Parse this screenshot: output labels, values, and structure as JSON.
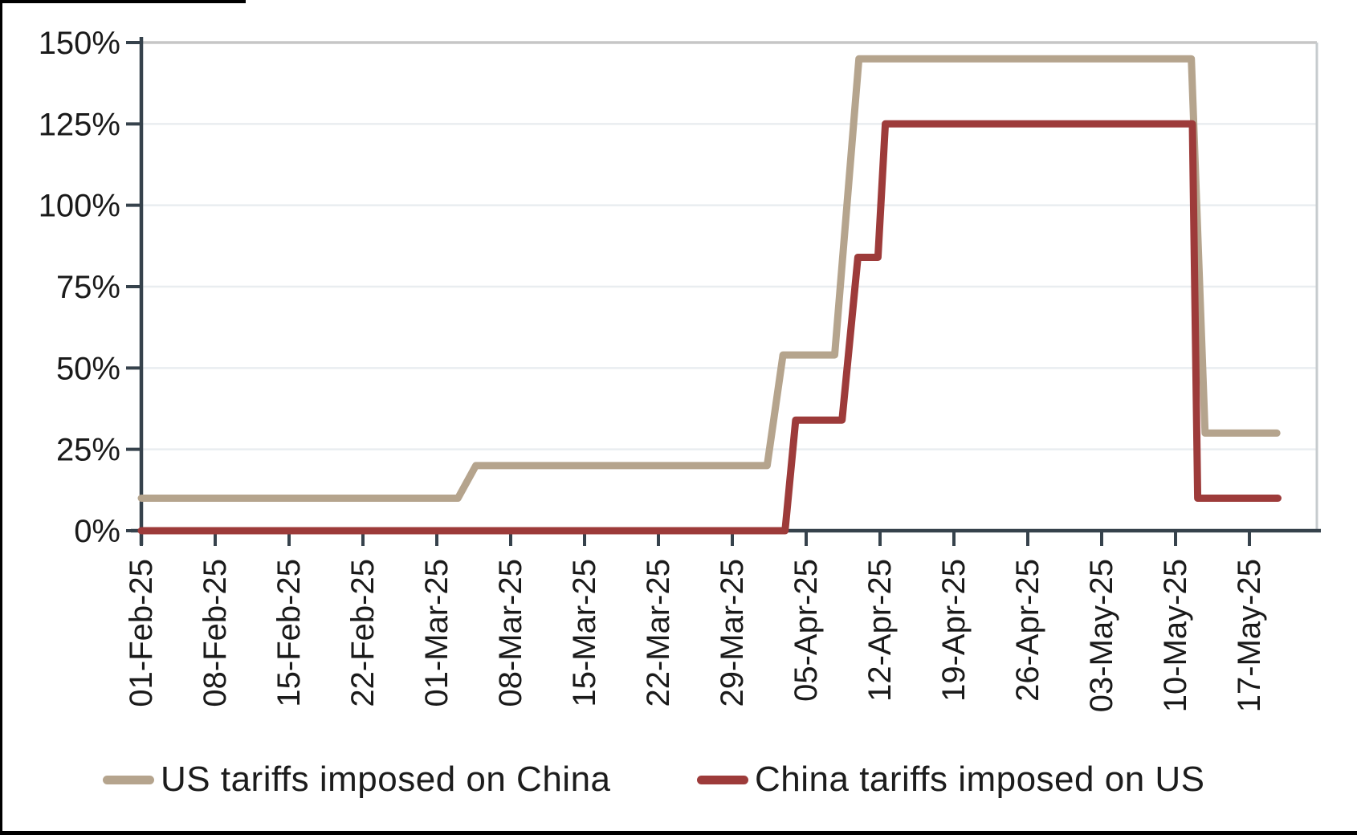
{
  "chart_data": {
    "type": "line",
    "title": "",
    "x_axis": {
      "start_date": "01-Feb-25",
      "tick_interval_days": 7,
      "tick_labels": [
        "01-Feb-25",
        "08-Feb-25",
        "15-Feb-25",
        "22-Feb-25",
        "01-Mar-25",
        "08-Mar-25",
        "15-Mar-25",
        "22-Mar-25",
        "29-Mar-25",
        "05-Apr-25",
        "12-Apr-25",
        "19-Apr-25",
        "26-Apr-25",
        "03-May-25",
        "10-May-25",
        "17-May-25"
      ],
      "range_days": [
        0,
        111.4
      ]
    },
    "y_axis": {
      "unit": "percent",
      "ticks": [
        0,
        25,
        50,
        75,
        100,
        125,
        150
      ],
      "tick_labels": [
        "0%",
        "25%",
        "50%",
        "75%",
        "100%",
        "125%",
        "150%"
      ],
      "range": [
        0,
        150
      ]
    },
    "grid": "horizontal",
    "legend_position": "bottom",
    "series": [
      {
        "name": "US tariffs imposed on China",
        "color": "#b5a48d",
        "points_day_value": [
          [
            0,
            10
          ],
          [
            30,
            10
          ],
          [
            31.7,
            20
          ],
          [
            59.3,
            20
          ],
          [
            60.8,
            54
          ],
          [
            65.7,
            54
          ],
          [
            68,
            145
          ],
          [
            99.5,
            145
          ],
          [
            100.8,
            30
          ],
          [
            107.6,
            30
          ]
        ]
      },
      {
        "name": "China tariffs imposed on US",
        "color": "#9d3b3a",
        "points_day_value": [
          [
            0,
            0
          ],
          [
            61,
            0
          ],
          [
            62,
            34
          ],
          [
            66.4,
            34
          ],
          [
            67.9,
            84
          ],
          [
            69.8,
            84
          ],
          [
            70.5,
            125
          ],
          [
            99.6,
            125
          ],
          [
            100.1,
            10
          ],
          [
            107.7,
            10
          ]
        ]
      }
    ]
  },
  "colors": {
    "grid_line": "#e9edf0",
    "top_border": "#c6c6c6",
    "right_border": "#c6cbce",
    "axis": "#36424c",
    "tick_text": "#1a1a1a",
    "edge_artifact": "#000000"
  }
}
